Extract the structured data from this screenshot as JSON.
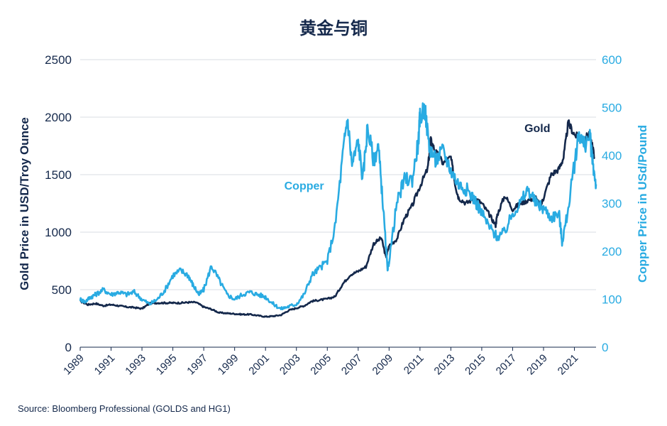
{
  "chart_data": {
    "type": "line",
    "title": "黄金与铜",
    "ylabel_left": "Gold Price in USD/Troy Ounce",
    "ylabel_right": "Copper Price in USd/Pound",
    "source": "Source: Bloomberg Professional (GOLDS and HG1)",
    "x_ticks": [
      "1989",
      "1991",
      "1993",
      "1995",
      "1997",
      "1999",
      "2001",
      "2003",
      "2005",
      "2007",
      "2009",
      "2011",
      "2013",
      "2015",
      "2017",
      "2019",
      "2021"
    ],
    "xlim": [
      1989.0,
      2022.4
    ],
    "ylim_left": [
      0,
      2500
    ],
    "ylim_right": [
      0,
      600
    ],
    "yticks_left": [
      "0",
      "500",
      "1000",
      "1500",
      "2000",
      "2500"
    ],
    "yticks_right": [
      "0",
      "100",
      "200",
      "300",
      "400",
      "500",
      "600"
    ],
    "grid": "horizontal",
    "colors": {
      "gold": "#14284b",
      "copper": "#29abe2",
      "grid": "#d9dde3",
      "text": "#14284b"
    },
    "annotations": [
      {
        "text": "Gold",
        "series": "gold",
        "x": 2018.6,
        "y": 1870
      },
      {
        "text": "Copper",
        "series": "copper",
        "x": 2003.5,
        "y": 1370
      }
    ],
    "series": [
      {
        "name": "Gold",
        "axis": "left",
        "x": [
          1989.0,
          1989.5,
          1990.0,
          1990.5,
          1991.0,
          1991.5,
          1992.0,
          1992.5,
          1993.0,
          1993.5,
          1994.0,
          1994.5,
          1995.0,
          1995.5,
          1996.0,
          1996.5,
          1997.0,
          1997.5,
          1998.0,
          1998.5,
          1999.0,
          1999.5,
          2000.0,
          2000.5,
          2001.0,
          2001.5,
          2002.0,
          2002.5,
          2003.0,
          2003.5,
          2004.0,
          2004.5,
          2005.0,
          2005.5,
          2006.0,
          2006.5,
          2007.0,
          2007.5,
          2008.0,
          2008.5,
          2008.8,
          2009.0,
          2009.5,
          2010.0,
          2010.5,
          2011.0,
          2011.5,
          2011.7,
          2012.0,
          2012.5,
          2013.0,
          2013.3,
          2013.5,
          2014.0,
          2014.5,
          2015.0,
          2015.5,
          2015.9,
          2016.0,
          2016.5,
          2017.0,
          2017.5,
          2018.0,
          2018.5,
          2018.8,
          2019.0,
          2019.5,
          2020.0,
          2020.3,
          2020.6,
          2021.0,
          2021.5,
          2022.0,
          2022.3
        ],
        "y": [
          400,
          370,
          380,
          360,
          370,
          360,
          350,
          345,
          335,
          380,
          385,
          385,
          385,
          385,
          390,
          390,
          350,
          330,
          300,
          295,
          290,
          285,
          285,
          275,
          265,
          270,
          280,
          320,
          340,
          360,
          400,
          410,
          420,
          440,
          550,
          630,
          660,
          700,
          900,
          950,
          780,
          880,
          940,
          1120,
          1230,
          1400,
          1550,
          1800,
          1700,
          1600,
          1650,
          1400,
          1300,
          1250,
          1300,
          1250,
          1150,
          1060,
          1150,
          1320,
          1200,
          1250,
          1280,
          1300,
          1220,
          1300,
          1500,
          1550,
          1650,
          1950,
          1850,
          1800,
          1850,
          1650
        ]
      },
      {
        "name": "Copper",
        "axis": "right",
        "x": [
          1989.0,
          1989.3,
          1989.7,
          1990.0,
          1990.5,
          1991.0,
          1991.5,
          1992.0,
          1992.5,
          1993.0,
          1993.5,
          1994.0,
          1994.5,
          1995.0,
          1995.5,
          1996.0,
          1996.3,
          1996.7,
          1997.0,
          1997.5,
          1998.0,
          1998.5,
          1999.0,
          1999.5,
          2000.0,
          2000.5,
          2001.0,
          2001.5,
          2002.0,
          2002.5,
          2003.0,
          2003.5,
          2004.0,
          2004.5,
          2005.0,
          2005.5,
          2006.0,
          2006.3,
          2006.6,
          2007.0,
          2007.3,
          2007.6,
          2008.0,
          2008.3,
          2008.6,
          2008.9,
          2009.0,
          2009.5,
          2010.0,
          2010.5,
          2010.9,
          2011.0,
          2011.3,
          2011.6,
          2012.0,
          2012.5,
          2013.0,
          2013.5,
          2014.0,
          2014.5,
          2015.0,
          2015.5,
          2016.0,
          2016.5,
          2017.0,
          2017.5,
          2018.0,
          2018.5,
          2019.0,
          2019.5,
          2020.0,
          2020.2,
          2020.5,
          2021.0,
          2021.3,
          2021.6,
          2022.0,
          2022.2,
          2022.4
        ],
        "y": [
          100,
          95,
          105,
          110,
          120,
          110,
          115,
          110,
          115,
          100,
          90,
          100,
          120,
          150,
          160,
          150,
          130,
          110,
          120,
          170,
          140,
          110,
          100,
          110,
          115,
          110,
          105,
          90,
          80,
          85,
          90,
          110,
          150,
          165,
          180,
          250,
          400,
          480,
          380,
          430,
          350,
          460,
          390,
          420,
          300,
          160,
          180,
          300,
          350,
          350,
          430,
          480,
          500,
          420,
          390,
          410,
          370,
          340,
          330,
          310,
          280,
          250,
          230,
          240,
          280,
          300,
          330,
          300,
          290,
          270,
          280,
          220,
          270,
          380,
          450,
          420,
          440,
          380,
          340
        ]
      }
    ]
  }
}
